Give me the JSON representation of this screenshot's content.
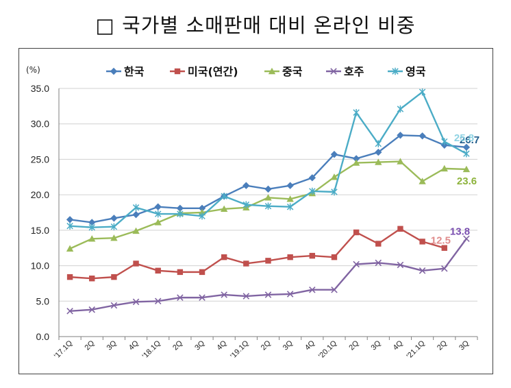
{
  "page_title": "□ 국가별 소매판매 대비 온라인 비중",
  "chart_data": {
    "type": "line",
    "title": "국가별 소매판매 대비 온라인 비중",
    "unit_label": "(%)",
    "ylim": [
      0,
      35
    ],
    "yticks": [
      "0.0",
      "5.0",
      "10.0",
      "15.0",
      "20.0",
      "25.0",
      "30.0",
      "35.0"
    ],
    "categories": [
      "'17.1Q",
      "2Q",
      "3Q",
      "4Q",
      "'18.1Q",
      "2Q",
      "3Q",
      "4Q",
      "'19.1Q",
      "2Q",
      "3Q",
      "4Q",
      "'20.1Q",
      "2Q",
      "3Q",
      "4Q",
      "'21.1Q",
      "2Q",
      "3Q"
    ],
    "legend_position": "top",
    "series": [
      {
        "name": "한국",
        "color": "#4A7EBB",
        "marker": "diamond",
        "values": [
          16.5,
          16.1,
          16.7,
          17.2,
          18.3,
          18.1,
          18.1,
          19.8,
          21.3,
          20.8,
          21.3,
          22.4,
          25.7,
          25.1,
          26.0,
          28.4,
          28.3,
          27.0,
          26.7
        ],
        "end_label": "26.7",
        "label_color": "#1F5C8B"
      },
      {
        "name": "미국(연간)",
        "color": "#C0504D",
        "marker": "square",
        "values": [
          8.4,
          8.2,
          8.4,
          10.3,
          9.3,
          9.1,
          9.1,
          11.2,
          10.3,
          10.7,
          11.2,
          11.4,
          11.2,
          14.7,
          13.1,
          15.2,
          13.4,
          12.5,
          null
        ],
        "end_label": "12.5",
        "label_color": "#E08C8C"
      },
      {
        "name": "중국",
        "color": "#9BBB59",
        "marker": "triangle",
        "values": [
          12.4,
          13.8,
          13.9,
          14.9,
          16.1,
          17.4,
          17.5,
          18.0,
          18.2,
          19.6,
          19.4,
          20.2,
          22.5,
          24.5,
          24.6,
          24.7,
          21.9,
          23.7,
          23.6
        ],
        "end_label": "23.6",
        "label_color": "#8DB33B"
      },
      {
        "name": "호주",
        "color": "#8064A2",
        "marker": "x",
        "values": [
          3.6,
          3.8,
          4.4,
          4.9,
          5.0,
          5.5,
          5.5,
          5.9,
          5.7,
          5.9,
          6.0,
          6.6,
          6.6,
          10.2,
          10.4,
          10.1,
          9.3,
          9.6,
          13.8
        ],
        "end_label": "13.8",
        "label_color": "#7A4FB0"
      },
      {
        "name": "영국",
        "color": "#4BACC6",
        "marker": "star",
        "values": [
          15.6,
          15.4,
          15.5,
          18.2,
          17.3,
          17.3,
          17.0,
          19.8,
          18.6,
          18.4,
          18.3,
          20.5,
          20.4,
          31.6,
          27.2,
          32.1,
          34.5,
          27.5,
          25.8
        ],
        "end_label": "25.8",
        "label_color": "#8FD3E3"
      }
    ]
  }
}
